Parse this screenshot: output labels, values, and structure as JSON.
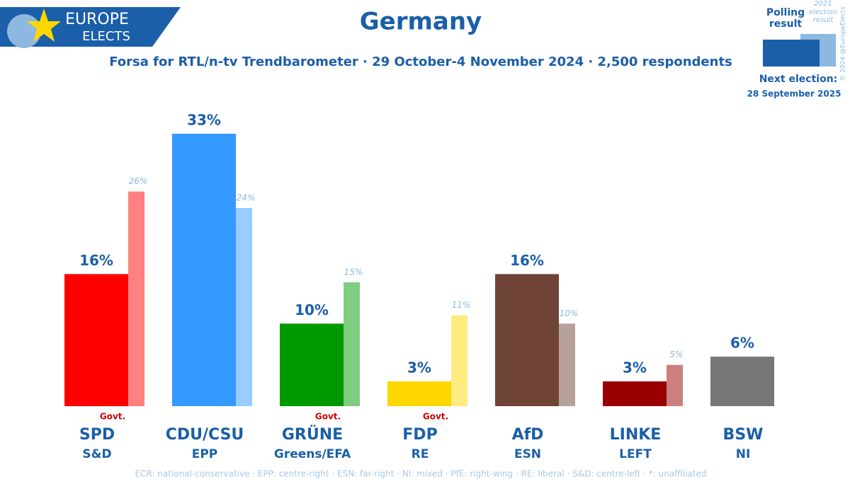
{
  "logo": {
    "line1": "EUROPE",
    "line2": "ELECTS"
  },
  "credit": "© 2024 @EuropeElects",
  "next_election": {
    "label": "Next election:",
    "date": "28 September 2025"
  },
  "footnote": "ECR: national-conservative · EPP: centre-right · ESN: far-right · NI: mixed · PfE: right-wing · RE: liberal · S&D: centre-left · *: unaffiliated",
  "chart_data": {
    "type": "bar",
    "title": "Germany",
    "subtitle": "Forsa for RTL/n-tv Trendbarometer · 29 October-4 November 2024 · 2,500 respondents",
    "categories": [
      "SPD",
      "CDU/CSU",
      "GRÜNE",
      "FDP",
      "AfD",
      "LINKE",
      "BSW"
    ],
    "groups": [
      "S&D",
      "EPP",
      "Greens/EFA",
      "RE",
      "ESN",
      "LEFT",
      "NI"
    ],
    "govt_labels": [
      "Govt.",
      null,
      "Govt.",
      "Govt.",
      null,
      null,
      null
    ],
    "ylim": [
      0,
      33
    ],
    "series": [
      {
        "name": "Polling result",
        "color": "#1a5fa8",
        "colors": [
          "#ff0000",
          "#3399ff",
          "#009900",
          "#ffd700",
          "#6f4437",
          "#990000",
          "#777777"
        ],
        "values": [
          16,
          33,
          10,
          3,
          16,
          3,
          6
        ],
        "value_labels": [
          "16%",
          "33%",
          "10%",
          "3%",
          "16%",
          "3%",
          "6%"
        ]
      },
      {
        "name": "2021 election result",
        "color": "#8db8e0",
        "colors": [
          "#ff8080",
          "#99ccff",
          "#80cc80",
          "#ffeb80",
          "#b7a29b",
          "#cc7f7f",
          "#bbbbbb"
        ],
        "values": [
          26,
          24,
          15,
          11,
          10,
          5,
          null
        ],
        "value_labels": [
          "26%",
          "24%",
          "15%",
          "11%",
          "10%",
          "5%",
          null
        ]
      }
    ]
  }
}
